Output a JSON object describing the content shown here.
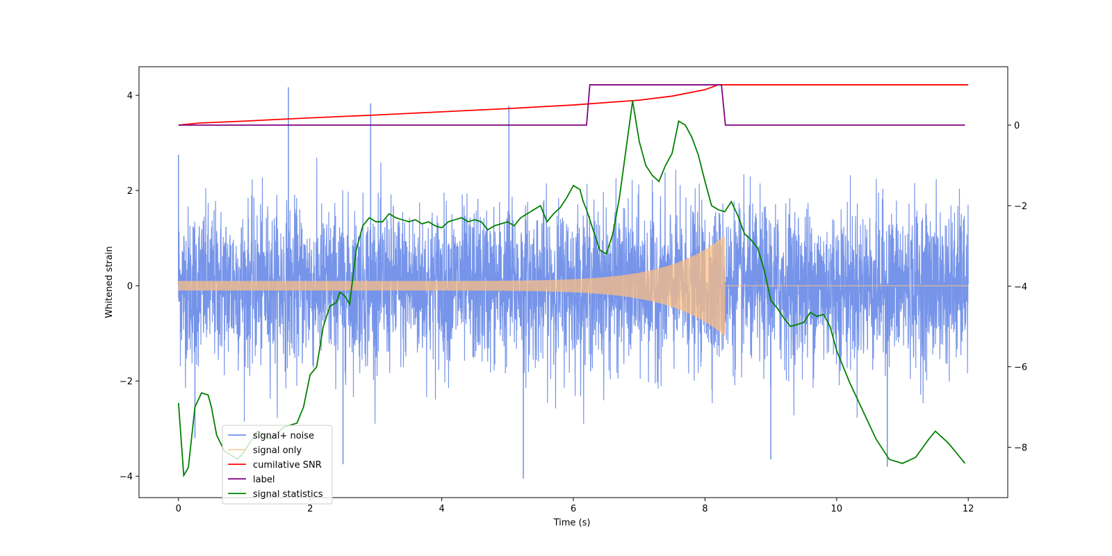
{
  "chart_data": {
    "type": "line",
    "title": "",
    "xlabel": "Time (s)",
    "ylabel": "Whitened strain",
    "y2label": "",
    "xlim": [
      -0.6,
      12.6
    ],
    "ylim": [
      -4.45,
      4.6
    ],
    "y2lim": [
      -9.25,
      1.45
    ],
    "xticks": [
      0,
      2,
      4,
      6,
      8,
      10,
      12
    ],
    "yticks": [
      -4,
      -2,
      0,
      2,
      4
    ],
    "y2ticks": [
      -8,
      -6,
      -4,
      -2,
      0
    ],
    "legend_position": "lower-left",
    "series": [
      {
        "name": "signal+ noise",
        "axis": "left",
        "color": "#6f8ee8",
        "style": "noise",
        "noise_std": 0.82,
        "t_start": 0,
        "t_end": 12,
        "spikes": [
          {
            "t": 0.0,
            "y": 2.75
          },
          {
            "t": 1.67,
            "y": 4.17
          },
          {
            "t": 2.92,
            "y": 3.83
          },
          {
            "t": 5.02,
            "y": 3.78
          },
          {
            "t": 0.25,
            "y": -3.2
          },
          {
            "t": 2.5,
            "y": -3.75
          },
          {
            "t": 5.24,
            "y": -4.05
          },
          {
            "t": 9.0,
            "y": -3.65
          },
          {
            "t": 10.77,
            "y": -3.8
          }
        ]
      },
      {
        "name": "signal only",
        "axis": "left",
        "color": "#ffbf80",
        "style": "chirp",
        "t_start": 0,
        "t_merge": 8.3,
        "amp_start": 0.1,
        "amp_peak": 1.05,
        "t_end": 12
      },
      {
        "name": "cumilative SNR",
        "axis": "right",
        "color": "#ff0000",
        "x": [
          0,
          0.3,
          1,
          2,
          3,
          4,
          5,
          6,
          7,
          7.5,
          8,
          8.2,
          8.27,
          8.3,
          9,
          10,
          11,
          12
        ],
        "y": [
          0,
          0.05,
          0.1,
          0.18,
          0.25,
          0.33,
          0.41,
          0.5,
          0.62,
          0.72,
          0.88,
          1.0,
          1.0,
          1.0,
          1.0,
          1.0,
          1.0,
          1.0
        ]
      },
      {
        "name": "label",
        "axis": "right",
        "color": "#800080",
        "x": [
          0,
          6.2,
          6.25,
          8.25,
          8.31,
          11.95
        ],
        "y": [
          0,
          0,
          1,
          1,
          0,
          0
        ]
      },
      {
        "name": "signal statistics",
        "axis": "right",
        "color": "#008000",
        "x": [
          0,
          0.08,
          0.15,
          0.25,
          0.35,
          0.45,
          0.5,
          0.58,
          0.7,
          0.8,
          0.9,
          1.0,
          1.2,
          1.4,
          1.6,
          1.8,
          1.9,
          2.0,
          2.1,
          2.2,
          2.3,
          2.4,
          2.45,
          2.5,
          2.55,
          2.6,
          2.7,
          2.8,
          2.9,
          3.0,
          3.1,
          3.2,
          3.3,
          3.4,
          3.5,
          3.6,
          3.7,
          3.8,
          3.9,
          4.0,
          4.1,
          4.2,
          4.3,
          4.4,
          4.5,
          4.6,
          4.7,
          4.8,
          4.9,
          5.0,
          5.1,
          5.2,
          5.3,
          5.4,
          5.5,
          5.6,
          5.7,
          5.8,
          5.9,
          6.0,
          6.1,
          6.15,
          6.2,
          6.3,
          6.4,
          6.5,
          6.6,
          6.7,
          6.8,
          6.9,
          7.0,
          7.1,
          7.2,
          7.3,
          7.4,
          7.5,
          7.6,
          7.7,
          7.8,
          7.9,
          8.0,
          8.1,
          8.2,
          8.3,
          8.4,
          8.5,
          8.6,
          8.7,
          8.8,
          8.9,
          9.0,
          9.1,
          9.2,
          9.3,
          9.4,
          9.5,
          9.6,
          9.7,
          9.8,
          9.9,
          10.0,
          10.2,
          10.4,
          10.6,
          10.8,
          11.0,
          11.2,
          11.4,
          11.5,
          11.6,
          11.7,
          11.8,
          11.9,
          11.95
        ],
        "y": [
          -6.9,
          -8.7,
          -8.5,
          -7.0,
          -6.65,
          -6.7,
          -7.0,
          -7.7,
          -8.1,
          -8.2,
          -8.3,
          -8.1,
          -7.6,
          -7.8,
          -7.5,
          -7.4,
          -7.0,
          -6.2,
          -6.0,
          -5.0,
          -4.5,
          -4.4,
          -4.15,
          -4.2,
          -4.3,
          -4.45,
          -3.1,
          -2.5,
          -2.3,
          -2.4,
          -2.4,
          -2.2,
          -2.3,
          -2.35,
          -2.4,
          -2.35,
          -2.45,
          -2.4,
          -2.5,
          -2.55,
          -2.4,
          -2.35,
          -2.3,
          -2.4,
          -2.35,
          -2.4,
          -2.6,
          -2.5,
          -2.45,
          -2.4,
          -2.5,
          -2.3,
          -2.2,
          -2.1,
          -2.0,
          -2.4,
          -2.2,
          -2.05,
          -1.8,
          -1.5,
          -1.6,
          -1.9,
          -2.1,
          -2.6,
          -3.1,
          -3.2,
          -2.7,
          -1.8,
          -0.6,
          0.6,
          -0.4,
          -1.0,
          -1.25,
          -1.4,
          -1.0,
          -0.7,
          0.1,
          0.0,
          -0.3,
          -0.75,
          -1.4,
          -2.0,
          -2.1,
          -2.15,
          -1.9,
          -2.25,
          -2.7,
          -2.85,
          -3.05,
          -3.6,
          -4.35,
          -4.55,
          -4.8,
          -5.0,
          -4.95,
          -4.9,
          -4.65,
          -4.75,
          -4.7,
          -5.0,
          -5.6,
          -6.4,
          -7.1,
          -7.8,
          -8.3,
          -8.4,
          -8.25,
          -7.8,
          -7.6,
          -7.75,
          -7.9,
          -8.1,
          -8.3,
          -8.4
        ]
      }
    ]
  }
}
